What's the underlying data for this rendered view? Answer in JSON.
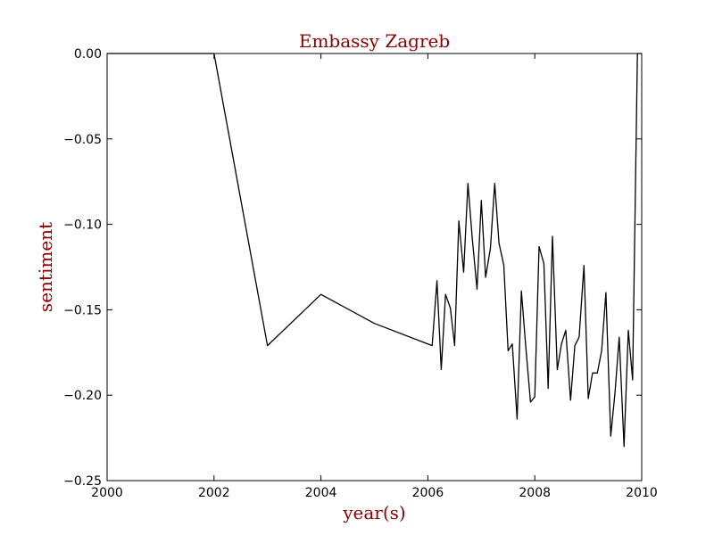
{
  "chart_data": {
    "type": "line",
    "title": "Embassy Zagreb",
    "xlabel": "year(s)",
    "ylabel": "sentiment",
    "xlim": [
      2000,
      2010
    ],
    "ylim": [
      -0.25,
      0.0
    ],
    "xticks": [
      2000,
      2002,
      2004,
      2006,
      2008,
      2010
    ],
    "xtick_labels": [
      "2000",
      "2002",
      "2004",
      "2006",
      "2008",
      "2010"
    ],
    "yticks": [
      0.0,
      -0.05,
      -0.1,
      -0.15,
      -0.2,
      -0.25
    ],
    "ytick_labels": [
      "0.00",
      "−0.05",
      "−0.10",
      "−0.15",
      "−0.20",
      "−0.25"
    ],
    "grid": false,
    "colors": {
      "line": "#000000",
      "title": "#8b0000",
      "labels": "#8b0000",
      "axes": "#000000"
    },
    "series": [
      {
        "x": [
          2000.0,
          2002.0,
          2003.0,
          2004.0,
          2005.0,
          2006.08,
          2006.17,
          2006.25,
          2006.33,
          2006.42,
          2006.5,
          2006.58,
          2006.67,
          2006.75,
          2006.83,
          2006.92,
          2007.0,
          2007.08,
          2007.17,
          2007.25,
          2007.33,
          2007.42,
          2007.5,
          2007.58,
          2007.67,
          2007.75,
          2007.83,
          2007.92,
          2008.0,
          2008.08,
          2008.17,
          2008.25,
          2008.33,
          2008.42,
          2008.5,
          2008.58,
          2008.67,
          2008.75,
          2008.83,
          2008.92,
          2009.0,
          2009.08,
          2009.17,
          2009.25,
          2009.33,
          2009.42,
          2009.5,
          2009.58,
          2009.67,
          2009.75,
          2009.83,
          2009.92,
          2010.0
        ],
        "y": [
          0.0,
          0.0,
          -0.171,
          -0.141,
          -0.158,
          -0.171,
          -0.133,
          -0.185,
          -0.141,
          -0.149,
          -0.171,
          -0.098,
          -0.128,
          -0.076,
          -0.108,
          -0.138,
          -0.086,
          -0.131,
          -0.114,
          -0.076,
          -0.111,
          -0.124,
          -0.174,
          -0.17,
          -0.214,
          -0.139,
          -0.171,
          -0.204,
          -0.201,
          -0.113,
          -0.123,
          -0.196,
          -0.107,
          -0.185,
          -0.17,
          -0.162,
          -0.203,
          -0.171,
          -0.166,
          -0.124,
          -0.202,
          -0.187,
          -0.187,
          -0.174,
          -0.14,
          -0.224,
          -0.199,
          -0.166,
          -0.23,
          -0.162,
          -0.191,
          0.0,
          0.0
        ]
      }
    ]
  }
}
